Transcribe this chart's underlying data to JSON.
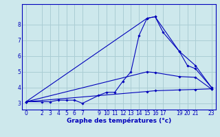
{
  "xlabel": "Graphe des températures (°c)",
  "background_color": "#cde8ec",
  "grid_color": "#aacdd4",
  "line_color": "#0000bb",
  "xlim": [
    -0.5,
    23.5
  ],
  "ylim": [
    2.6,
    9.3
  ],
  "xticks": [
    0,
    2,
    3,
    4,
    5,
    6,
    7,
    9,
    10,
    11,
    12,
    13,
    14,
    15,
    16,
    17,
    19,
    20,
    21,
    23
  ],
  "yticks": [
    3,
    4,
    5,
    6,
    7,
    8
  ],
  "lines": [
    {
      "x": [
        0,
        2,
        3,
        4,
        5,
        6,
        7,
        9,
        10,
        11,
        12,
        13,
        14,
        15,
        16,
        17,
        19,
        20,
        21,
        23
      ],
      "y": [
        3.1,
        3.1,
        3.1,
        3.2,
        3.2,
        3.2,
        3.0,
        3.5,
        3.7,
        3.7,
        4.4,
        5.0,
        7.3,
        8.4,
        8.5,
        7.5,
        6.3,
        5.4,
        5.2,
        4.0
      ],
      "style": "solid"
    },
    {
      "x": [
        0,
        15,
        16,
        19,
        21,
        23
      ],
      "y": [
        3.1,
        8.4,
        8.5,
        6.3,
        5.4,
        4.0
      ],
      "style": "solid"
    },
    {
      "x": [
        0,
        15,
        16,
        19,
        21,
        23
      ],
      "y": [
        3.1,
        5.0,
        4.95,
        4.7,
        4.65,
        3.9
      ],
      "style": "solid"
    },
    {
      "x": [
        0,
        15,
        16,
        19,
        21,
        23
      ],
      "y": [
        3.1,
        3.75,
        3.8,
        3.85,
        3.88,
        3.92
      ],
      "style": "solid"
    }
  ],
  "figsize": [
    3.2,
    2.0
  ],
  "dpi": 100,
  "tick_fontsize": 5.5,
  "xlabel_fontsize": 6.5
}
